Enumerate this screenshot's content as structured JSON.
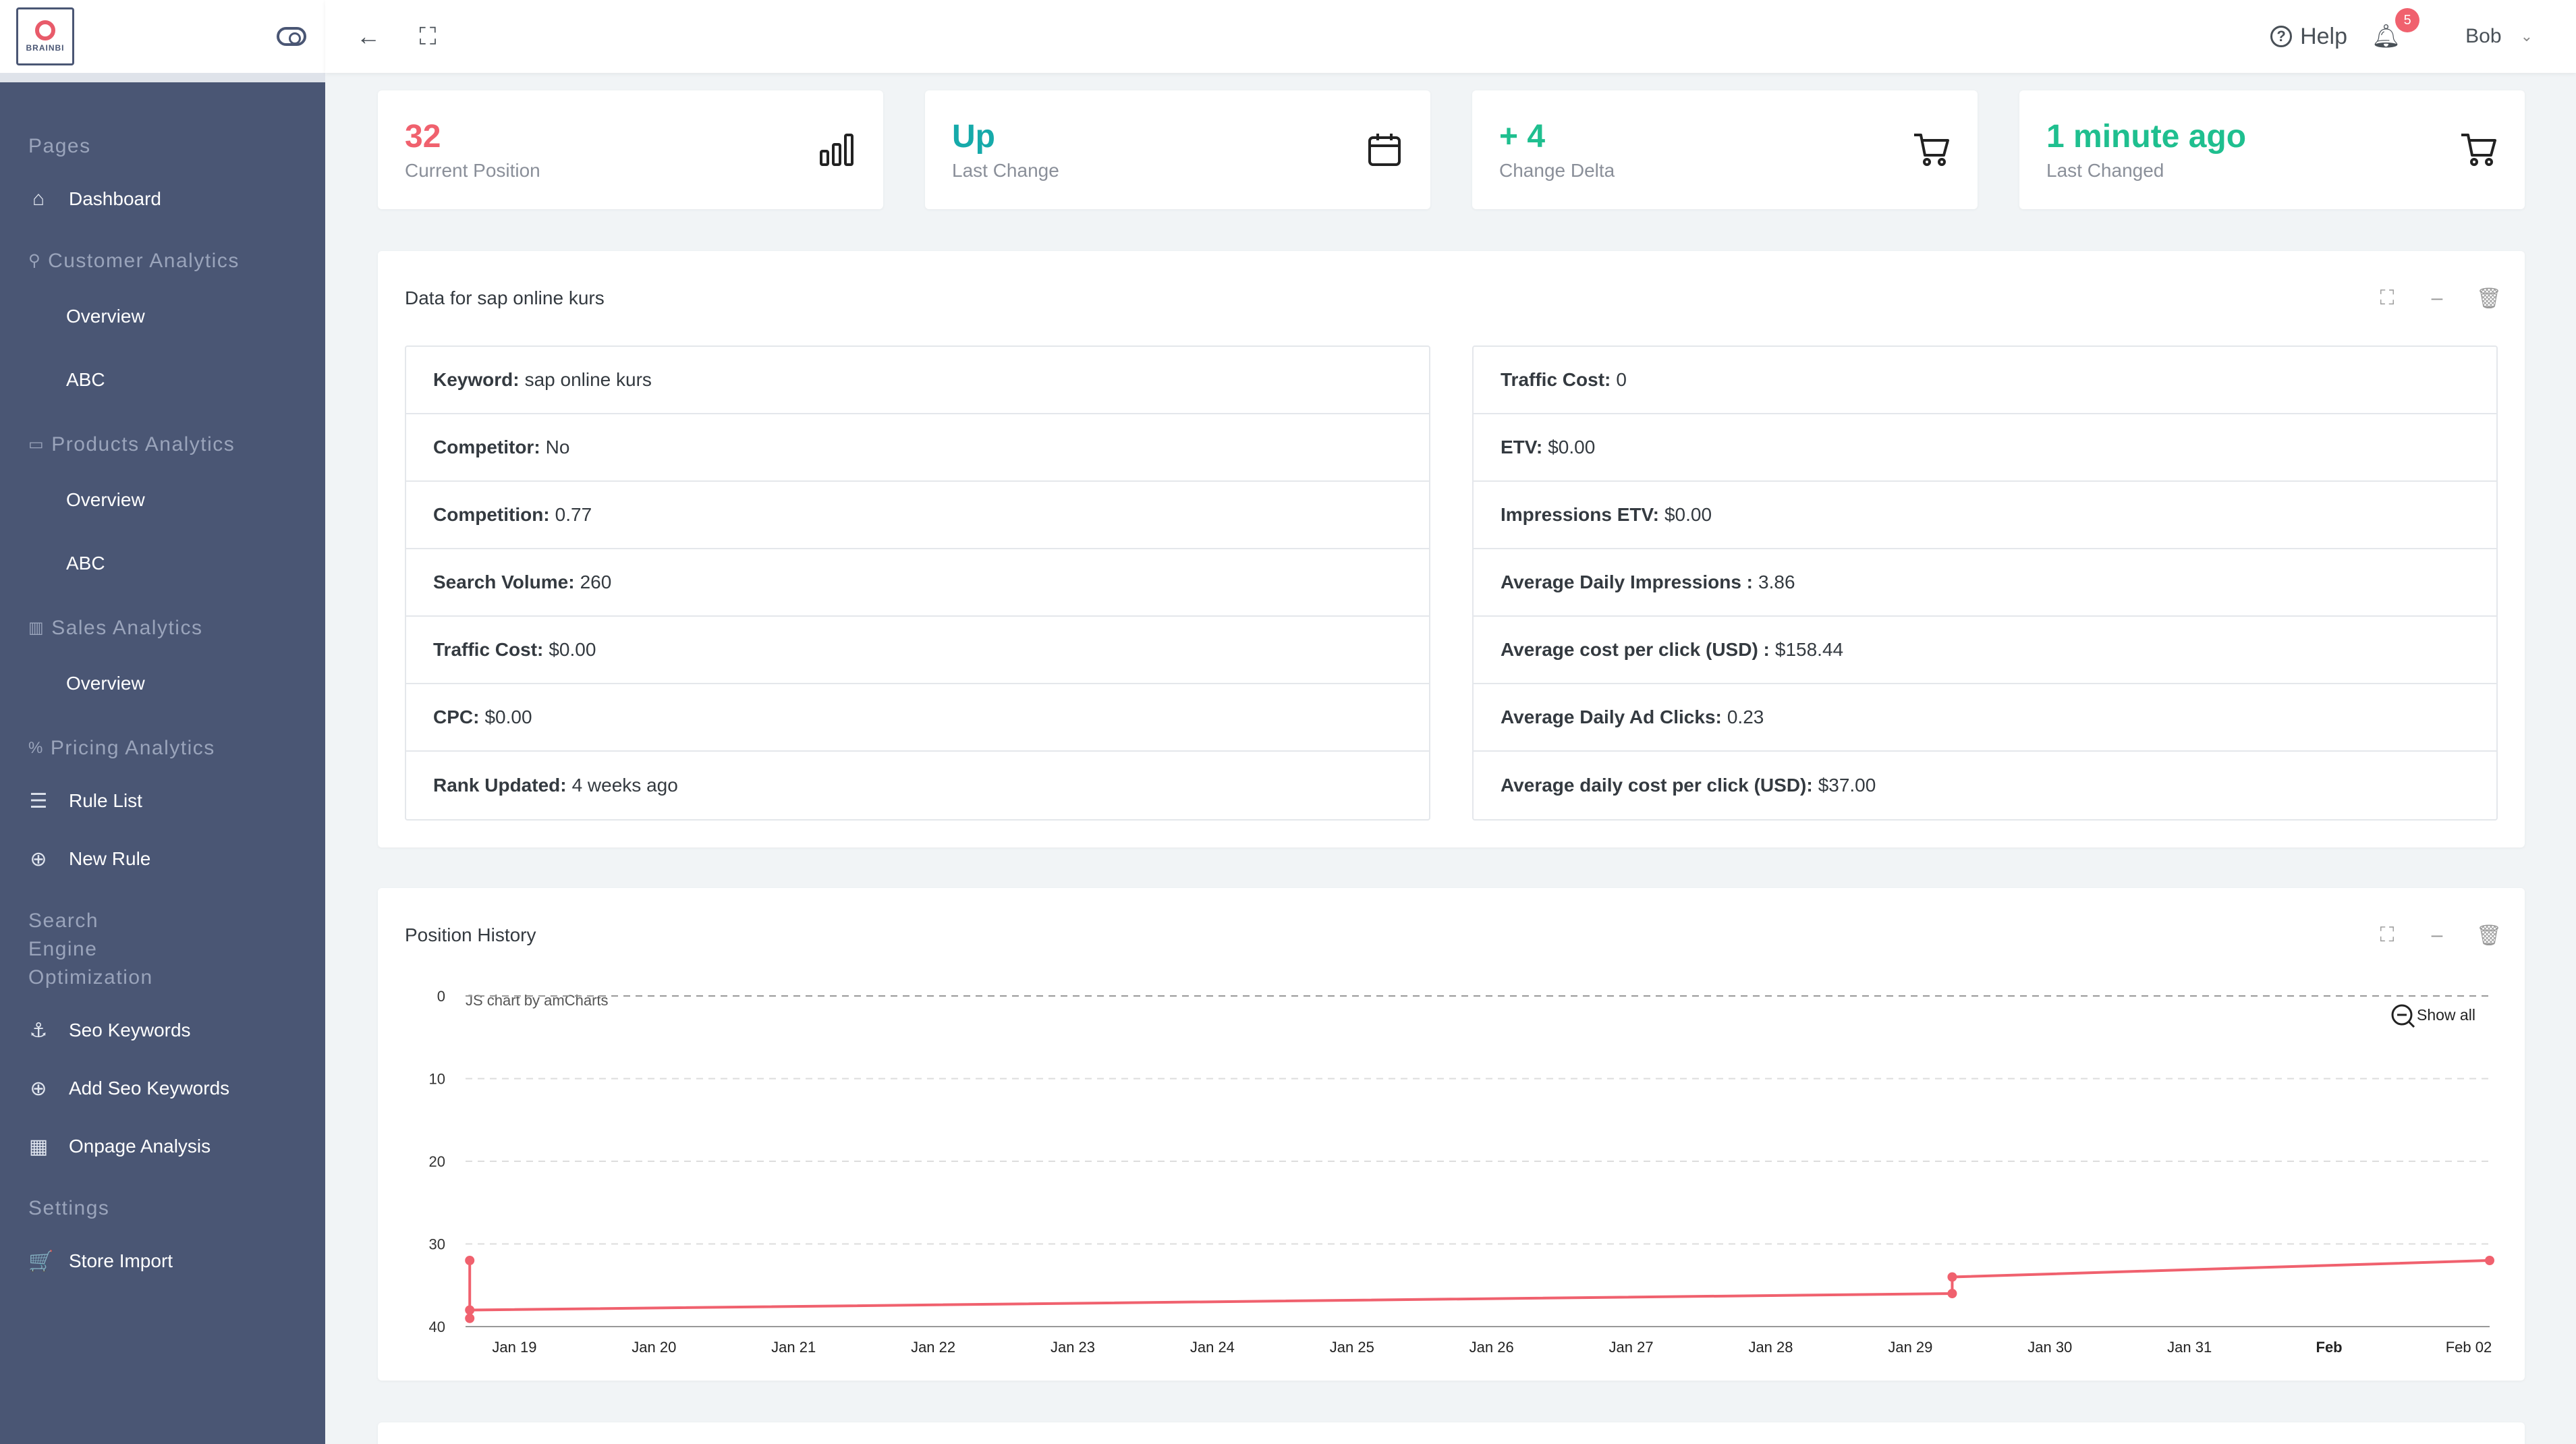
{
  "sidebar": {
    "logo_text": "BRAINBI",
    "sections": [
      {
        "heading": "Pages",
        "icon": "",
        "items": [
          {
            "label": "Dashboard",
            "icon": "home-icon",
            "glyph": "⌂"
          }
        ],
        "subs": []
      },
      {
        "heading": "Customer Analytics",
        "icon": "user-icon",
        "glyph": "⚲",
        "items": [],
        "subs": [
          "Overview",
          "ABC"
        ]
      },
      {
        "heading": "Products Analytics",
        "icon": "folder-icon",
        "glyph": "▭",
        "items": [],
        "subs": [
          "Overview",
          "ABC"
        ]
      },
      {
        "heading": "Sales Analytics",
        "icon": "bar-chart-icon",
        "glyph": "▥",
        "items": [],
        "subs": [
          "Overview"
        ]
      },
      {
        "heading": "Pricing Analytics",
        "icon": "percent-icon",
        "glyph": "%",
        "items": [
          {
            "label": "Rule List",
            "icon": "list-icon",
            "glyph": "☰"
          },
          {
            "label": "New Rule",
            "icon": "plus-circle-icon",
            "glyph": "⊕"
          }
        ],
        "subs": []
      },
      {
        "heading": "Search Engine Optimization",
        "icon": "",
        "items": [
          {
            "label": "Seo Keywords",
            "icon": "anchor-icon",
            "glyph": "⚓"
          },
          {
            "label": "Add Seo Keywords",
            "icon": "plus-circle-icon",
            "glyph": "⊕"
          },
          {
            "label": "Onpage Analysis",
            "icon": "layout-icon",
            "glyph": "▦"
          }
        ],
        "subs": []
      },
      {
        "heading": "Settings",
        "icon": "",
        "items": [
          {
            "label": "Store Import",
            "icon": "cart-icon",
            "glyph": "🛒"
          }
        ],
        "subs": []
      }
    ]
  },
  "topbar": {
    "help_label": "Help",
    "notification_count": "5",
    "user_name": "Bob"
  },
  "stats": [
    {
      "value": "32",
      "label": "Current Position",
      "color": "#f0616e",
      "icon": "bar-chart-icon"
    },
    {
      "value": "Up",
      "label": "Last Change",
      "color": "#16aaaa",
      "icon": "calendar-icon"
    },
    {
      "value": "+ 4",
      "label": "Change Delta",
      "color": "#1fbf8f",
      "icon": "cart-icon"
    },
    {
      "value": "1 minute ago",
      "label": "Last Changed",
      "color": "#1fbf8f",
      "icon": "cart-icon"
    }
  ],
  "data_panel": {
    "title": "Data for sap online kurs",
    "left": [
      {
        "k": "Keyword:",
        "v": "sap online kurs"
      },
      {
        "k": "Competitor:",
        "v": "No"
      },
      {
        "k": "Competition:",
        "v": "0.77"
      },
      {
        "k": "Search Volume:",
        "v": "260"
      },
      {
        "k": "Traffic Cost:",
        "v": "$0.00"
      },
      {
        "k": "CPC:",
        "v": "$0.00"
      },
      {
        "k": "Rank Updated:",
        "v": "4 weeks ago"
      }
    ],
    "right": [
      {
        "k": "Traffic Cost:",
        "v": "0"
      },
      {
        "k": "ETV:",
        "v": "$0.00"
      },
      {
        "k": "Impressions ETV:",
        "v": "$0.00"
      },
      {
        "k": "Average Daily Impressions :",
        "v": "3.86"
      },
      {
        "k": "Average cost per click (USD) :",
        "v": "$158.44"
      },
      {
        "k": "Average Daily Ad Clicks:",
        "v": "0.23"
      },
      {
        "k": "Average daily cost per click (USD):",
        "v": "$37.00"
      }
    ]
  },
  "history_panel": {
    "title": "Position History",
    "credit": "JS chart by amCharts",
    "show_all": "Show all"
  },
  "chart_data": {
    "type": "line",
    "title": "",
    "xlabel": "",
    "ylabel": "",
    "y_reversed": true,
    "ylim": [
      0,
      40
    ],
    "y_ticks": [
      "0",
      "10",
      "20",
      "30",
      "40"
    ],
    "x_range_days": [
      0.65,
      15.15
    ],
    "x_ticks": [
      {
        "label": "Jan 19",
        "day": 1,
        "bold": false
      },
      {
        "label": "Jan 20",
        "day": 2,
        "bold": false
      },
      {
        "label": "Jan 21",
        "day": 3,
        "bold": false
      },
      {
        "label": "Jan 22",
        "day": 4,
        "bold": false
      },
      {
        "label": "Jan 23",
        "day": 5,
        "bold": false
      },
      {
        "label": "Jan 24",
        "day": 6,
        "bold": false
      },
      {
        "label": "Jan 25",
        "day": 7,
        "bold": false
      },
      {
        "label": "Jan 26",
        "day": 8,
        "bold": false
      },
      {
        "label": "Jan 27",
        "day": 9,
        "bold": false
      },
      {
        "label": "Jan 28",
        "day": 10,
        "bold": false
      },
      {
        "label": "Jan 29",
        "day": 11,
        "bold": false
      },
      {
        "label": "Jan 30",
        "day": 12,
        "bold": false
      },
      {
        "label": "Jan 31",
        "day": 13,
        "bold": false
      },
      {
        "label": "Feb",
        "day": 14,
        "bold": true
      },
      {
        "label": "Feb 02",
        "day": 15,
        "bold": false
      }
    ],
    "series": [
      {
        "color": "#f0616e",
        "points": [
          {
            "day": 0.68,
            "y": 32
          },
          {
            "day": 0.68,
            "y": 39
          },
          {
            "day": 0.68,
            "y": 38
          },
          {
            "day": 11.3,
            "y": 36
          },
          {
            "day": 11.3,
            "y": 34
          },
          {
            "day": 15.15,
            "y": 32
          }
        ]
      }
    ]
  }
}
